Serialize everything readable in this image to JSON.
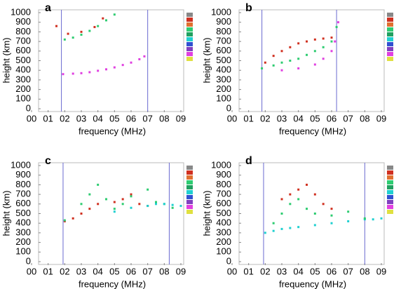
{
  "chart_data": [
    {
      "type": "scatter",
      "title": "a",
      "x_label": "frequency (MHz)",
      "y_label": "height (km)",
      "xlim": [
        0,
        9
      ],
      "ylim": [
        0,
        1000
      ],
      "xticks": [
        {
          "value": 0,
          "label": "00"
        },
        {
          "value": 1,
          "label": "01"
        },
        {
          "value": 2,
          "label": "02"
        },
        {
          "value": 3,
          "label": "03"
        },
        {
          "value": 4,
          "label": "04"
        },
        {
          "value": 5,
          "label": "05"
        },
        {
          "value": 6,
          "label": "06"
        },
        {
          "value": 7,
          "label": "07"
        },
        {
          "value": 8,
          "label": "08"
        },
        {
          "value": 9,
          "label": "09"
        }
      ],
      "yticks": [
        0,
        100,
        200,
        300,
        400,
        500,
        600,
        700,
        800,
        900,
        1000
      ],
      "markers": [
        1.8,
        7.0
      ],
      "series": [
        {
          "color": "#e040e0",
          "x": [
            1.9,
            2.5,
            3,
            3.5,
            4,
            4.5,
            5,
            5.5,
            6,
            6.5,
            6.8
          ],
          "values": [
            360,
            365,
            370,
            380,
            395,
            410,
            430,
            455,
            480,
            515,
            545
          ]
        },
        {
          "color": "#2ecc71",
          "x": [
            2,
            2.5,
            3,
            3.5,
            4,
            4.5,
            5
          ],
          "values": [
            720,
            740,
            770,
            810,
            860,
            920,
            980
          ]
        },
        {
          "color": "#d03020",
          "x": [
            1.5,
            2.2,
            3,
            3.8,
            4.3
          ],
          "values": [
            860,
            780,
            800,
            850,
            940
          ]
        }
      ]
    },
    {
      "type": "scatter",
      "title": "b",
      "x_label": "frequency (MHz)",
      "y_label": "height (km)",
      "xlim": [
        0,
        9
      ],
      "ylim": [
        0,
        1000
      ],
      "xticks": [
        {
          "value": 0,
          "label": "00"
        },
        {
          "value": 1,
          "label": "01"
        },
        {
          "value": 2,
          "label": "02"
        },
        {
          "value": 3,
          "label": "03"
        },
        {
          "value": 4,
          "label": "04"
        },
        {
          "value": 5,
          "label": "05"
        },
        {
          "value": 6,
          "label": "06"
        },
        {
          "value": 7,
          "label": "07"
        },
        {
          "value": 8,
          "label": "08"
        },
        {
          "value": 9,
          "label": "09"
        }
      ],
      "yticks": [
        0,
        100,
        200,
        300,
        400,
        500,
        600,
        700,
        800,
        900,
        1000
      ],
      "markers": [
        1.8,
        6.3
      ],
      "series": [
        {
          "color": "#d03020",
          "x": [
            2,
            2.5,
            3,
            3.5,
            4,
            4.5,
            5,
            5.5,
            6
          ],
          "values": [
            480,
            550,
            600,
            640,
            680,
            700,
            720,
            730,
            740
          ]
        },
        {
          "color": "#2ecc71",
          "x": [
            1.8,
            2.5,
            3,
            3.5,
            4,
            4.5,
            5,
            5.5,
            6,
            6.3
          ],
          "values": [
            420,
            450,
            480,
            500,
            520,
            560,
            600,
            640,
            700,
            850
          ]
        },
        {
          "color": "#e040e0",
          "x": [
            3,
            4,
            5,
            5.5,
            6,
            6.2,
            6.4
          ],
          "values": [
            400,
            420,
            460,
            520,
            600,
            700,
            900
          ]
        }
      ]
    },
    {
      "type": "scatter",
      "title": "c",
      "x_label": "frequency (MHz)",
      "y_label": "height (km)",
      "xlim": [
        0,
        9
      ],
      "ylim": [
        0,
        1000
      ],
      "xticks": [
        {
          "value": 0,
          "label": "00"
        },
        {
          "value": 1,
          "label": "01"
        },
        {
          "value": 2,
          "label": "02"
        },
        {
          "value": 3,
          "label": "03"
        },
        {
          "value": 4,
          "label": "04"
        },
        {
          "value": 5,
          "label": "05"
        },
        {
          "value": 6,
          "label": "06"
        },
        {
          "value": 7,
          "label": "07"
        },
        {
          "value": 8,
          "label": "08"
        },
        {
          "value": 9,
          "label": "09"
        }
      ],
      "yticks": [
        0,
        100,
        200,
        300,
        400,
        500,
        600,
        700,
        800,
        900,
        1000
      ],
      "markers": [
        1.9,
        8.3
      ],
      "series": [
        {
          "color": "#d03020",
          "x": [
            2,
            2.5,
            3,
            3.5,
            4,
            5,
            5.5,
            6,
            6.5,
            7
          ],
          "values": [
            420,
            450,
            500,
            550,
            600,
            620,
            650,
            700,
            600,
            580
          ]
        },
        {
          "color": "#2ecc71",
          "x": [
            2,
            3,
            3.5,
            4,
            4.5,
            5,
            5.5,
            6,
            7,
            7.5,
            8,
            8.5
          ],
          "values": [
            430,
            600,
            700,
            800,
            650,
            550,
            600,
            680,
            750,
            620,
            600,
            560
          ]
        },
        {
          "color": "#20d0d0",
          "x": [
            5,
            6,
            7,
            7.5,
            8,
            8.5,
            9
          ],
          "values": [
            520,
            560,
            580,
            600,
            600,
            590,
            580
          ]
        }
      ]
    },
    {
      "type": "scatter",
      "title": "d",
      "x_label": "frequency (MHz)",
      "y_label": "height (km)",
      "xlim": [
        0,
        9
      ],
      "ylim": [
        0,
        1000
      ],
      "xticks": [
        {
          "value": 0,
          "label": "00"
        },
        {
          "value": 1,
          "label": "01"
        },
        {
          "value": 2,
          "label": "02"
        },
        {
          "value": 3,
          "label": "03"
        },
        {
          "value": 4,
          "label": "04"
        },
        {
          "value": 5,
          "label": "05"
        },
        {
          "value": 6,
          "label": "06"
        },
        {
          "value": 7,
          "label": "07"
        },
        {
          "value": 8,
          "label": "08"
        },
        {
          "value": 9,
          "label": "09"
        }
      ],
      "yticks": [
        0,
        100,
        200,
        300,
        400,
        500,
        600,
        700,
        800,
        900,
        1000
      ],
      "markers": [
        1.9,
        8.0
      ],
      "series": [
        {
          "color": "#20d0d0",
          "x": [
            2,
            2.5,
            3,
            3.5,
            4,
            5,
            6,
            7,
            8,
            8.5,
            9
          ],
          "values": [
            300,
            320,
            340,
            350,
            360,
            380,
            400,
            420,
            440,
            440,
            450
          ]
        },
        {
          "color": "#2ecc71",
          "x": [
            2.5,
            3,
            3.5,
            4,
            4.5,
            5,
            6,
            7,
            8
          ],
          "values": [
            400,
            500,
            600,
            650,
            550,
            500,
            480,
            520,
            450
          ]
        },
        {
          "color": "#d03020",
          "x": [
            3,
            3.5,
            4,
            4.5,
            5,
            5.5,
            6
          ],
          "values": [
            650,
            700,
            750,
            800,
            700,
            600,
            550
          ]
        }
      ]
    }
  ]
}
